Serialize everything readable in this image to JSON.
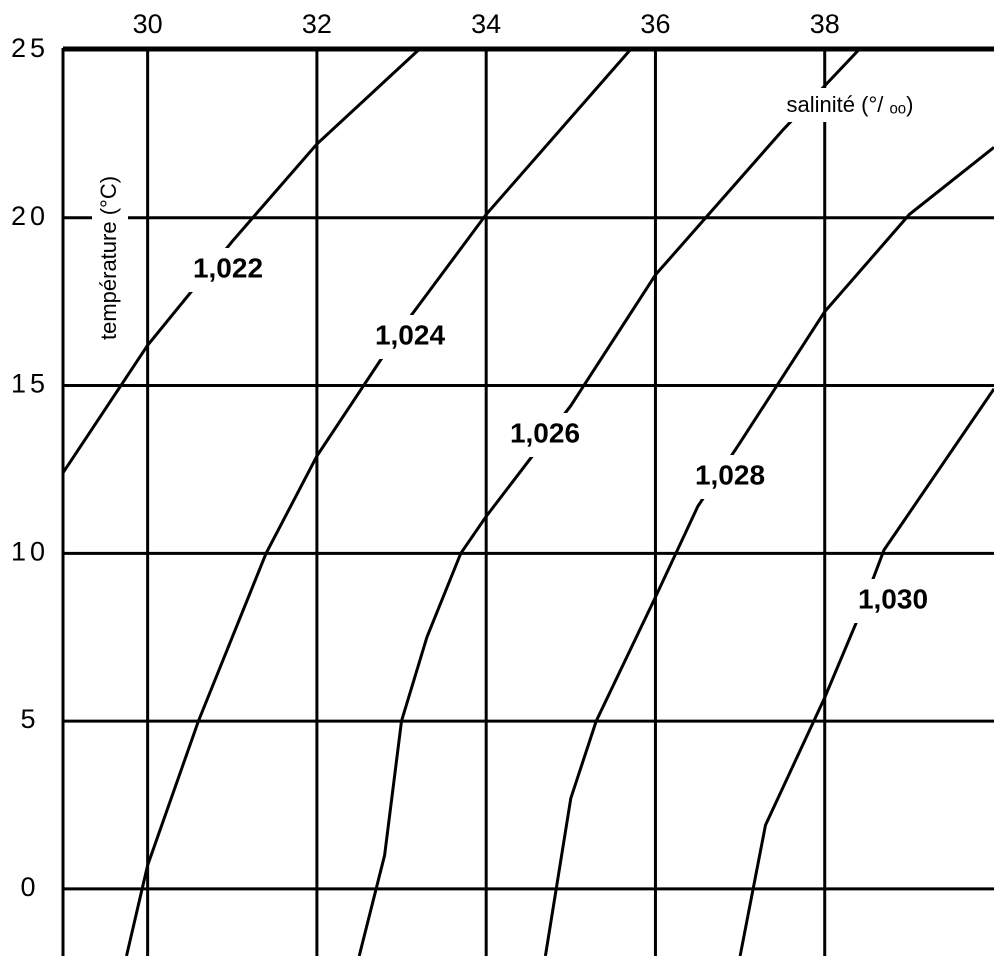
{
  "chart_data": {
    "type": "line",
    "x_label": "salinité (°/ ₒₒ)",
    "y_label": "température (°C)",
    "xlim": [
      29,
      40
    ],
    "xticks": [
      30,
      32,
      34,
      36,
      38
    ],
    "ylim": [
      -2,
      25
    ],
    "yticks": [
      0,
      5,
      10,
      15,
      20,
      25
    ],
    "grid": true,
    "series": [
      {
        "name": "1,022",
        "color": "#000000",
        "x": [
          29,
          30,
          31,
          32,
          33.2
        ],
        "values": [
          12.4,
          16.2,
          19.3,
          22.2,
          25
        ]
      },
      {
        "name": "1,024",
        "color": "#000000",
        "x": [
          29.75,
          30,
          30.6,
          31.4,
          32,
          33,
          34,
          35.7
        ],
        "values": [
          -2,
          0.7,
          5,
          10,
          12.9,
          16.7,
          20.1,
          25
        ]
      },
      {
        "name": "1,026",
        "color": "#000000",
        "x": [
          32.5,
          32.8,
          33,
          33.3,
          33.7,
          34,
          35,
          36,
          37.5,
          38.4
        ],
        "values": [
          -2,
          1,
          5,
          7.5,
          10,
          11.1,
          14.4,
          18.3,
          22.6,
          25
        ]
      },
      {
        "name": "1,028",
        "color": "#000000",
        "x": [
          34.7,
          35,
          35.3,
          36,
          36.5,
          37,
          38,
          39,
          40
        ],
        "values": [
          -2,
          2.7,
          5,
          8.7,
          11.4,
          13.3,
          17.2,
          20.1,
          22.1
        ]
      },
      {
        "name": "1,030",
        "color": "#000000",
        "x": [
          37,
          37.3,
          38,
          38.4,
          38.7,
          40
        ],
        "values": [
          -2,
          1.9,
          5.7,
          8.1,
          10.1,
          14.9
        ]
      }
    ]
  }
}
